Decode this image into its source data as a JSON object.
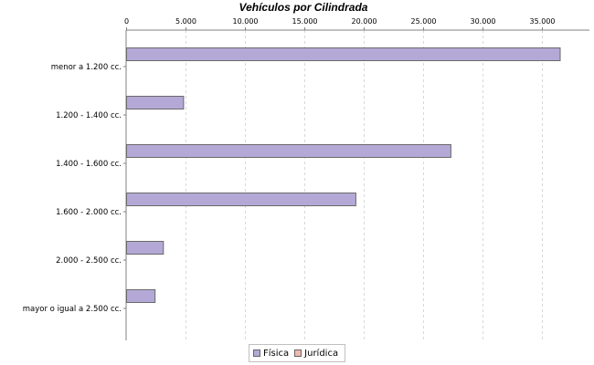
{
  "chart_data": {
    "type": "bar",
    "orientation": "horizontal",
    "title": "Vehículos por Cilindrada",
    "categories": [
      "menor a 1.200 cc.",
      "1.200 - 1.400 cc.",
      "1.400 - 1.600 cc.",
      "1.600 - 2.000 cc.",
      "2.000 - 2.500 cc.",
      "mayor o igual a 2.500 cc."
    ],
    "series": [
      {
        "name": "Física",
        "color": "#b4a9d6",
        "values": [
          36500,
          4800,
          27300,
          19300,
          3100,
          2400
        ]
      },
      {
        "name": "Jurídica",
        "color": "#f0b8b0",
        "values": [
          0,
          0,
          0,
          0,
          0,
          0
        ]
      }
    ],
    "x_ticks": [
      "0",
      "5.000",
      "10.000",
      "15.000",
      "20.000",
      "25.000",
      "30.000",
      "35.000"
    ],
    "xlim": [
      0,
      39000
    ],
    "grid": true,
    "axis_position": "top",
    "legend_position": "bottom-center"
  }
}
